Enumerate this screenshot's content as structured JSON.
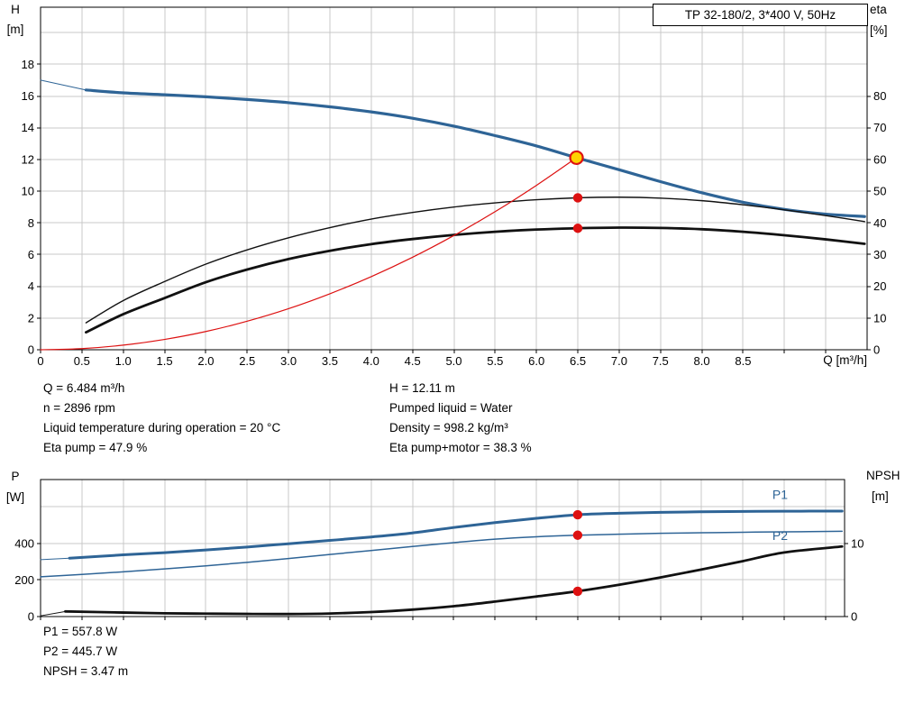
{
  "colors": {
    "blue": "#2e6496",
    "black": "#111111",
    "red": "#dd1111",
    "duty_fill": "#ffd200",
    "grid": "#c9c9c9"
  },
  "info_block": {
    "left": [
      "Q = 6.484 m³/h",
      "n = 2896 rpm",
      "Liquid temperature during operation = 20 °C",
      "Eta pump = 47.9 %"
    ],
    "right": [
      "H = 12.11 m",
      "Pumped liquid = Water",
      "Density = 998.2 kg/m³",
      "Eta pump+motor = 38.3 %"
    ]
  },
  "results_block": [
    "P1 = 557.8 W",
    "P2 = 445.7 W",
    "NPSH = 3.47 m"
  ],
  "chart_data": [
    {
      "type": "line",
      "title": "TP 32-180/2, 3*400 V, 50Hz",
      "x_axis": {
        "title": "Q [m³/h]",
        "lim": [
          0,
          10
        ],
        "grid_step": 0.5,
        "tick_values": [
          0,
          0.5,
          1,
          1.5,
          2,
          2.5,
          3,
          3.5,
          4,
          4.5,
          5,
          5.5,
          6,
          6.5,
          7,
          7.5,
          8,
          8.5
        ],
        "tick_labels": [
          "0",
          "0.5",
          "1.0",
          "1.5",
          "2.0",
          "2.5",
          "3.0",
          "3.5",
          "4.0",
          "4.5",
          "5.0",
          "5.5",
          "6.0",
          "6.5",
          "7.0",
          "7.5",
          "8.0",
          "8.5"
        ]
      },
      "left_axis": {
        "title": "H",
        "unit": "[m]",
        "lim": [
          0,
          21.6
        ],
        "grid_step": 2,
        "tick_values": [
          0,
          2,
          4,
          6,
          8,
          10,
          12,
          14,
          16,
          18
        ],
        "tick_labels": [
          "0",
          "2",
          "4",
          "6",
          "8",
          "10",
          "12",
          "14",
          "16",
          "18"
        ]
      },
      "right_axis": {
        "title": "eta",
        "unit": "[%]",
        "lim": [
          0,
          108
        ],
        "tick_values": [
          0,
          10,
          20,
          30,
          40,
          50,
          60,
          70,
          80
        ],
        "tick_labels": [
          "0",
          "10",
          "20",
          "30",
          "40",
          "50",
          "60",
          "70",
          "80"
        ]
      },
      "series": [
        {
          "name": "head-lead",
          "axis": "left",
          "color": "blue",
          "width": 1,
          "points": [
            [
              0,
              17.0
            ],
            [
              0.55,
              16.38
            ]
          ]
        },
        {
          "name": "head",
          "axis": "left",
          "color": "blue",
          "width": 3.2,
          "points": [
            [
              0.55,
              16.38
            ],
            [
              1,
              16.2
            ],
            [
              1.5,
              16.08
            ],
            [
              2,
              15.95
            ],
            [
              2.5,
              15.78
            ],
            [
              3,
              15.58
            ],
            [
              3.5,
              15.32
            ],
            [
              4,
              15.0
            ],
            [
              4.5,
              14.6
            ],
            [
              5,
              14.1
            ],
            [
              5.5,
              13.5
            ],
            [
              6,
              12.85
            ],
            [
              6.484,
              12.11
            ],
            [
              7,
              11.35
            ],
            [
              7.5,
              10.6
            ],
            [
              8,
              9.9
            ],
            [
              8.5,
              9.3
            ],
            [
              9,
              8.85
            ],
            [
              9.5,
              8.55
            ],
            [
              9.97,
              8.4
            ]
          ]
        },
        {
          "name": "eta-pump",
          "axis": "right",
          "color": "black",
          "width": 1.4,
          "points": [
            [
              0.55,
              8.5
            ],
            [
              1,
              15.5
            ],
            [
              1.5,
              21.5
            ],
            [
              2,
              27.0
            ],
            [
              2.5,
              31.5
            ],
            [
              3,
              35.3
            ],
            [
              3.5,
              38.5
            ],
            [
              4,
              41.2
            ],
            [
              4.5,
              43.3
            ],
            [
              5,
              45.0
            ],
            [
              5.5,
              46.3
            ],
            [
              6,
              47.3
            ],
            [
              6.5,
              47.9
            ],
            [
              7,
              48.1
            ],
            [
              7.5,
              47.8
            ],
            [
              8,
              47.0
            ],
            [
              8.5,
              45.7
            ],
            [
              9,
              44.1
            ],
            [
              9.5,
              42.3
            ],
            [
              9.97,
              40.4
            ]
          ]
        },
        {
          "name": "eta-pump-motor",
          "axis": "right",
          "color": "black",
          "width": 2.8,
          "points": [
            [
              0.55,
              5.5
            ],
            [
              1,
              11.2
            ],
            [
              1.5,
              16.3
            ],
            [
              2,
              21.3
            ],
            [
              2.5,
              25.3
            ],
            [
              3,
              28.6
            ],
            [
              3.5,
              31.2
            ],
            [
              4,
              33.3
            ],
            [
              4.5,
              34.9
            ],
            [
              5,
              36.2
            ],
            [
              5.5,
              37.2
            ],
            [
              6,
              37.9
            ],
            [
              6.5,
              38.3
            ],
            [
              7,
              38.5
            ],
            [
              7.5,
              38.4
            ],
            [
              8,
              38.0
            ],
            [
              8.5,
              37.2
            ],
            [
              9,
              36.1
            ],
            [
              9.5,
              34.8
            ],
            [
              9.97,
              33.4
            ]
          ]
        },
        {
          "name": "load-curve",
          "axis": "left",
          "color": "red",
          "width": 1.2,
          "points": [
            [
              0,
              0
            ],
            [
              0.5,
              0.07
            ],
            [
              1,
              0.29
            ],
            [
              1.5,
              0.65
            ],
            [
              2,
              1.15
            ],
            [
              2.5,
              1.8
            ],
            [
              3,
              2.59
            ],
            [
              3.5,
              3.53
            ],
            [
              4,
              4.61
            ],
            [
              4.5,
              5.83
            ],
            [
              5,
              7.2
            ],
            [
              5.5,
              8.71
            ],
            [
              6,
              10.37
            ],
            [
              6.484,
              12.11
            ]
          ]
        }
      ],
      "markers": [
        {
          "name": "duty-point",
          "axis": "left",
          "x": 6.484,
          "y": 12.11,
          "style": "duty"
        },
        {
          "name": "eta-pump-point",
          "axis": "right",
          "x": 6.5,
          "y": 47.9,
          "style": "dot"
        },
        {
          "name": "eta-pump-motor-point",
          "axis": "right",
          "x": 6.5,
          "y": 38.3,
          "style": "dot"
        }
      ]
    },
    {
      "type": "line",
      "x_axis": {
        "title": "",
        "lim": [
          0,
          9.73
        ],
        "grid_step": 0.5,
        "tick_values": [],
        "tick_labels": []
      },
      "left_axis": {
        "title": "P",
        "unit": "[W]",
        "lim": [
          0,
          750.6
        ],
        "grid_step": 200,
        "tick_values": [
          0,
          200,
          400
        ],
        "tick_labels": [
          "0",
          "200",
          "400"
        ]
      },
      "right_axis": {
        "title": "NPSH",
        "unit": "[m]",
        "lim": [
          0,
          18.77
        ],
        "tick_values": [
          0,
          10
        ],
        "tick_labels": [
          "0",
          "10"
        ]
      },
      "series": [
        {
          "name": "p1-lead",
          "axis": "left",
          "color": "blue",
          "width": 1,
          "points": [
            [
              0,
              312
            ],
            [
              0.35,
              320
            ]
          ]
        },
        {
          "name": "p1",
          "axis": "left",
          "color": "blue",
          "width": 3,
          "label": "P1",
          "label_at": [
            8.95,
            668
          ],
          "points": [
            [
              0.35,
              320
            ],
            [
              1,
              338
            ],
            [
              1.5,
              350
            ],
            [
              2,
              365
            ],
            [
              2.5,
              381
            ],
            [
              3,
              399
            ],
            [
              3.5,
              417
            ],
            [
              4,
              436
            ],
            [
              4.5,
              458
            ],
            [
              5,
              488
            ],
            [
              5.5,
              515
            ],
            [
              6,
              538
            ],
            [
              6.5,
              557.8
            ],
            [
              7,
              566
            ],
            [
              7.5,
              571
            ],
            [
              8,
              574
            ],
            [
              8.5,
              576
            ],
            [
              9,
              577
            ],
            [
              9.7,
              578
            ]
          ]
        },
        {
          "name": "p2",
          "axis": "left",
          "color": "blue",
          "width": 1.5,
          "label": "P2",
          "label_at": [
            8.95,
            444
          ],
          "points": [
            [
              0,
              218
            ],
            [
              0.5,
              231
            ],
            [
              1,
              245
            ],
            [
              1.5,
              261
            ],
            [
              2,
              278
            ],
            [
              2.5,
              297
            ],
            [
              3,
              318
            ],
            [
              3.5,
              340
            ],
            [
              4,
              362
            ],
            [
              4.5,
              384
            ],
            [
              5,
              405
            ],
            [
              5.5,
              424
            ],
            [
              6,
              437
            ],
            [
              6.5,
              445.7
            ],
            [
              7,
              451
            ],
            [
              7.5,
              456
            ],
            [
              8,
              459
            ],
            [
              8.5,
              462
            ],
            [
              9,
              464
            ],
            [
              9.7,
              467
            ]
          ]
        },
        {
          "name": "npsh-lead",
          "axis": "right",
          "color": "black",
          "width": 1,
          "points": [
            [
              0,
              0.1
            ],
            [
              0.3,
              0.7
            ]
          ]
        },
        {
          "name": "npsh",
          "axis": "right",
          "color": "black",
          "width": 2.8,
          "points": [
            [
              0.3,
              0.7
            ],
            [
              1,
              0.55
            ],
            [
              1.5,
              0.45
            ],
            [
              2,
              0.4
            ],
            [
              2.5,
              0.36
            ],
            [
              3,
              0.35
            ],
            [
              3.5,
              0.42
            ],
            [
              4,
              0.62
            ],
            [
              4.5,
              0.95
            ],
            [
              5,
              1.42
            ],
            [
              5.5,
              2.05
            ],
            [
              6,
              2.75
            ],
            [
              6.5,
              3.47
            ],
            [
              7,
              4.35
            ],
            [
              7.5,
              5.35
            ],
            [
              8,
              6.45
            ],
            [
              8.5,
              7.6
            ],
            [
              9,
              8.78
            ],
            [
              9.7,
              9.6
            ]
          ]
        }
      ],
      "markers": [
        {
          "name": "p1-point",
          "axis": "left",
          "x": 6.5,
          "y": 557.8,
          "style": "dot"
        },
        {
          "name": "p2-point",
          "axis": "left",
          "x": 6.5,
          "y": 445.7,
          "style": "dot"
        },
        {
          "name": "npsh-point",
          "axis": "right",
          "x": 6.5,
          "y": 3.47,
          "style": "dot"
        }
      ]
    }
  ]
}
